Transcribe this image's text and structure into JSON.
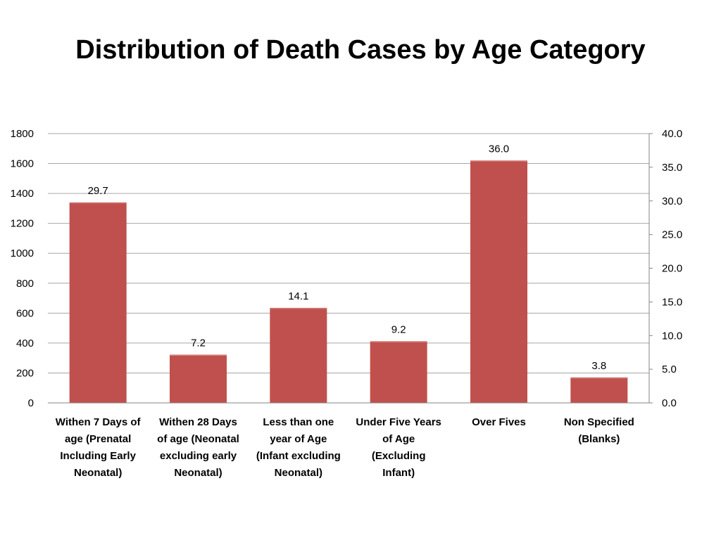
{
  "title": "Distribution of Death Cases by Age Category",
  "colors": {
    "bar": "#c0504d",
    "grid": "#a6a6a6",
    "axis": "#868686"
  },
  "chart_data": {
    "type": "bar",
    "title": "Distribution of Death Cases by Age Category",
    "categories": [
      [
        "Withen 7 Days of",
        "age (Prenatal",
        "Including Early",
        "Neonatal)"
      ],
      [
        "Withen 28 Days",
        "of age (Neonatal",
        "excluding early",
        "Neonatal)"
      ],
      [
        "Less than one",
        "year of Age",
        "(Infant excluding",
        "Neonatal)"
      ],
      [
        "Under Five Years",
        "of Age",
        "(Excluding",
        "Infant)"
      ],
      [
        "Over Fives"
      ],
      [
        "Non Specified",
        "(Blanks)"
      ]
    ],
    "values": [
      1340,
      322,
      635,
      412,
      1620,
      170
    ],
    "data_labels": [
      "29.7",
      "7.2",
      "14.1",
      "9.2",
      "36.0",
      "3.8"
    ],
    "y_left": {
      "ticks": [
        "0",
        "200",
        "400",
        "600",
        "800",
        "1000",
        "1200",
        "1400",
        "1600",
        "1800"
      ],
      "lim": [
        0,
        1800
      ]
    },
    "y_right": {
      "ticks": [
        "0.0",
        "5.0",
        "10.0",
        "15.0",
        "20.0",
        "25.0",
        "30.0",
        "35.0",
        "40.0"
      ],
      "lim": [
        0,
        40
      ]
    },
    "grid": true,
    "legend": "none"
  }
}
